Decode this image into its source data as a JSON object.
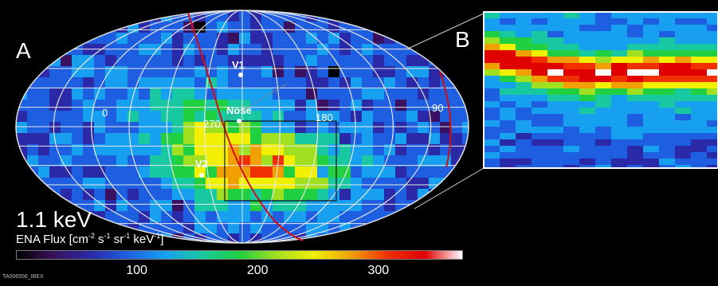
{
  "labels": {
    "panel_a": "A",
    "panel_b": "B",
    "energy": "1.1 keV",
    "flux_prefix": "ENA Flux [cm",
    "flux_exp1": "-2",
    "flux_mid1": " s",
    "flux_exp2": "-1",
    "flux_mid2": " sr",
    "flux_exp3": "-1",
    "flux_mid3": " keV",
    "flux_exp4": "-1",
    "flux_suffix": "]",
    "credit": "TA006556_IBEX"
  },
  "map_labels": {
    "v1": "V1",
    "v2": "V2",
    "nose": "Nose",
    "lon_0": "0",
    "lon_270": "270",
    "lon_180": "180",
    "lon_90": "90"
  },
  "colorbar": {
    "ticks": [
      "100",
      "200",
      "300"
    ],
    "tick_values": [
      100,
      200,
      300
    ],
    "range": [
      0,
      370
    ],
    "colors": [
      "#000000",
      "#3a1060",
      "#2a2aa8",
      "#1e5ee0",
      "#18a0f0",
      "#18c8a0",
      "#20d040",
      "#a0e020",
      "#f0f000",
      "#f0a000",
      "#f03000",
      "#e00000",
      "#ffffff"
    ]
  }
}
